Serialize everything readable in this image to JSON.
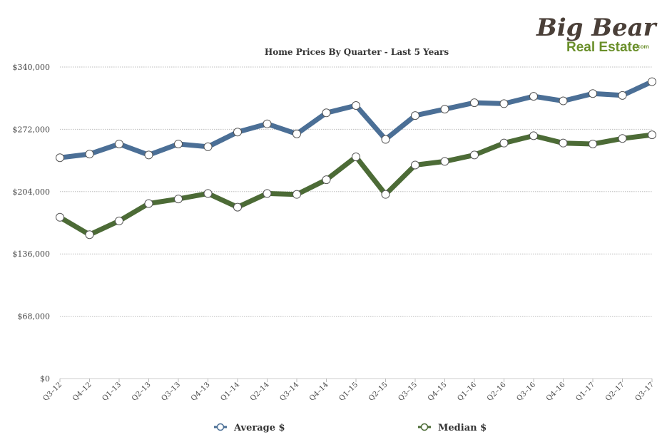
{
  "logo": {
    "line1": "Big Bear",
    "line2": "Real Estate",
    "suffix": ".com",
    "colors": {
      "line1": "#4a3f38",
      "line2": "#6a8f2a"
    }
  },
  "chart_data": {
    "type": "line",
    "title": "Home Prices By Quarter - Last 5 Years",
    "xlabel": "",
    "ylabel": "",
    "categories": [
      "Q3–12",
      "Q4–12",
      "Q1–13",
      "Q2–13",
      "Q3–13",
      "Q4–13",
      "Q1–14",
      "Q2–14",
      "Q3–14",
      "Q4–14",
      "Q1–15",
      "Q2–15",
      "Q3–15",
      "Q4–15",
      "Q1–16",
      "Q2–16",
      "Q3–16",
      "Q4–16",
      "Q1–17",
      "Q2–17",
      "Q3–17"
    ],
    "ylim": [
      0,
      340000
    ],
    "yticks": [
      0,
      68000,
      136000,
      204000,
      272000,
      340000
    ],
    "ytick_labels": [
      "$0",
      "$68,000",
      "$136,000",
      "$204,000",
      "$272,000",
      "$340,000"
    ],
    "grid": true,
    "legend_position": "bottom",
    "series": [
      {
        "name": "Average $",
        "color": "#4b6f96",
        "values": [
          241000,
          245000,
          256000,
          244000,
          256000,
          253000,
          269000,
          278000,
          267000,
          290000,
          298000,
          261000,
          287000,
          294000,
          301000,
          300000,
          308000,
          303000,
          311000,
          309000,
          324000
        ]
      },
      {
        "name": "Median $",
        "color": "#4c6b36",
        "values": [
          176000,
          157000,
          172000,
          191000,
          196000,
          202000,
          187000,
          202000,
          201000,
          217000,
          242000,
          201000,
          233000,
          237000,
          244000,
          257000,
          265000,
          257000,
          256000,
          262000,
          266000
        ]
      }
    ]
  }
}
